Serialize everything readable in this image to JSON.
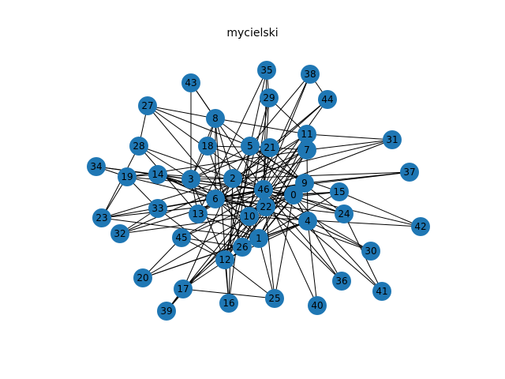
{
  "title": "mycielski",
  "colors": {
    "node": "#1f77b4",
    "edge": "#000000",
    "label": "#000000",
    "background": "#ffffff"
  },
  "graph": {
    "type": "network",
    "nodes": [
      "0",
      "1",
      "2",
      "3",
      "4",
      "5",
      "6",
      "7",
      "8",
      "9",
      "10",
      "11",
      "12",
      "13",
      "14",
      "15",
      "16",
      "17",
      "18",
      "19",
      "20",
      "21",
      "22",
      "23",
      "24",
      "25",
      "26",
      "27",
      "28",
      "29",
      "30",
      "31",
      "32",
      "33",
      "34",
      "35",
      "36",
      "37",
      "38",
      "39",
      "40",
      "41",
      "42",
      "43",
      "44",
      "45",
      "46"
    ],
    "edges": [
      [
        "0",
        "1"
      ],
      [
        "0",
        "2"
      ],
      [
        "0",
        "3"
      ],
      [
        "0",
        "4"
      ],
      [
        "0",
        "5"
      ],
      [
        "0",
        "9"
      ],
      [
        "0",
        "10"
      ],
      [
        "0",
        "14"
      ],
      [
        "0",
        "15"
      ],
      [
        "0",
        "22"
      ],
      [
        "0",
        "24"
      ],
      [
        "0",
        "25"
      ],
      [
        "0",
        "36"
      ],
      [
        "0",
        "41"
      ],
      [
        "1",
        "2"
      ],
      [
        "1",
        "4"
      ],
      [
        "1",
        "6"
      ],
      [
        "1",
        "7"
      ],
      [
        "1",
        "9"
      ],
      [
        "1",
        "11"
      ],
      [
        "1",
        "13"
      ],
      [
        "1",
        "15"
      ],
      [
        "1",
        "17"
      ],
      [
        "1",
        "20"
      ],
      [
        "1",
        "23"
      ],
      [
        "1",
        "25"
      ],
      [
        "1",
        "27"
      ],
      [
        "2",
        "3"
      ],
      [
        "2",
        "5"
      ],
      [
        "2",
        "8"
      ],
      [
        "2",
        "10"
      ],
      [
        "2",
        "11"
      ],
      [
        "2",
        "14"
      ],
      [
        "2",
        "16"
      ],
      [
        "2",
        "17"
      ],
      [
        "2",
        "23"
      ],
      [
        "2",
        "31"
      ],
      [
        "2",
        "37"
      ],
      [
        "3",
        "5"
      ],
      [
        "3",
        "6"
      ],
      [
        "3",
        "8"
      ],
      [
        "3",
        "12"
      ],
      [
        "3",
        "13"
      ],
      [
        "3",
        "18"
      ],
      [
        "3",
        "21"
      ],
      [
        "3",
        "28"
      ],
      [
        "3",
        "43"
      ],
      [
        "4",
        "6"
      ],
      [
        "4",
        "7"
      ],
      [
        "4",
        "12"
      ],
      [
        "4",
        "19"
      ],
      [
        "4",
        "20"
      ],
      [
        "4",
        "26"
      ],
      [
        "4",
        "30"
      ],
      [
        "4",
        "40"
      ],
      [
        "5",
        "7"
      ],
      [
        "5",
        "9"
      ],
      [
        "5",
        "12"
      ],
      [
        "5",
        "16"
      ],
      [
        "5",
        "27"
      ],
      [
        "5",
        "35"
      ],
      [
        "5",
        "38"
      ],
      [
        "6",
        "8"
      ],
      [
        "6",
        "9"
      ],
      [
        "6",
        "14"
      ],
      [
        "6",
        "15"
      ],
      [
        "6",
        "24"
      ],
      [
        "6",
        "44"
      ],
      [
        "7",
        "10"
      ],
      [
        "7",
        "13"
      ],
      [
        "7",
        "19"
      ],
      [
        "7",
        "26"
      ],
      [
        "7",
        "31"
      ],
      [
        "7",
        "32"
      ],
      [
        "8",
        "11"
      ],
      [
        "8",
        "16"
      ],
      [
        "8",
        "18"
      ],
      [
        "8",
        "27"
      ],
      [
        "8",
        "43"
      ],
      [
        "8",
        "24"
      ],
      [
        "9",
        "17"
      ],
      [
        "9",
        "21"
      ],
      [
        "9",
        "33"
      ],
      [
        "9",
        "37"
      ],
      [
        "9",
        "45"
      ],
      [
        "10",
        "11"
      ],
      [
        "10",
        "14"
      ],
      [
        "10",
        "20"
      ],
      [
        "10",
        "29"
      ],
      [
        "10",
        "32"
      ],
      [
        "10",
        "39"
      ],
      [
        "11",
        "12"
      ],
      [
        "11",
        "13"
      ],
      [
        "11",
        "29"
      ],
      [
        "11",
        "31"
      ],
      [
        "12",
        "22"
      ],
      [
        "12",
        "29"
      ],
      [
        "12",
        "38"
      ],
      [
        "12",
        "16"
      ],
      [
        "13",
        "21"
      ],
      [
        "13",
        "28"
      ],
      [
        "13",
        "42"
      ],
      [
        "13",
        "35"
      ],
      [
        "14",
        "22"
      ],
      [
        "14",
        "30"
      ],
      [
        "14",
        "34"
      ],
      [
        "14",
        "19"
      ],
      [
        "15",
        "18"
      ],
      [
        "15",
        "42"
      ],
      [
        "15",
        "23"
      ],
      [
        "17",
        "22"
      ],
      [
        "17",
        "39"
      ],
      [
        "17",
        "25"
      ],
      [
        "18",
        "21"
      ],
      [
        "18",
        "26"
      ],
      [
        "19",
        "23"
      ],
      [
        "19",
        "33"
      ],
      [
        "19",
        "34"
      ],
      [
        "19",
        "46"
      ],
      [
        "20",
        "45"
      ],
      [
        "21",
        "46"
      ],
      [
        "21",
        "44"
      ],
      [
        "22",
        "26"
      ],
      [
        "22",
        "46"
      ],
      [
        "22",
        "36"
      ],
      [
        "23",
        "46"
      ],
      [
        "23",
        "28"
      ],
      [
        "24",
        "46"
      ],
      [
        "24",
        "41"
      ],
      [
        "25",
        "46"
      ],
      [
        "25",
        "33"
      ],
      [
        "26",
        "46"
      ],
      [
        "26",
        "45"
      ],
      [
        "27",
        "46"
      ],
      [
        "27",
        "28"
      ],
      [
        "28",
        "46"
      ],
      [
        "29",
        "46"
      ],
      [
        "29",
        "35"
      ],
      [
        "30",
        "46"
      ],
      [
        "31",
        "46"
      ],
      [
        "32",
        "46"
      ],
      [
        "32",
        "33"
      ],
      [
        "33",
        "46"
      ],
      [
        "34",
        "46"
      ],
      [
        "35",
        "46"
      ],
      [
        "36",
        "46"
      ],
      [
        "37",
        "46"
      ],
      [
        "38",
        "46"
      ],
      [
        "38",
        "44"
      ],
      [
        "39",
        "46"
      ],
      [
        "40",
        "46"
      ],
      [
        "41",
        "46"
      ],
      [
        "42",
        "46"
      ],
      [
        "43",
        "46"
      ],
      [
        "44",
        "46"
      ],
      [
        "45",
        "46"
      ],
      [
        "45",
        "12"
      ]
    ]
  }
}
